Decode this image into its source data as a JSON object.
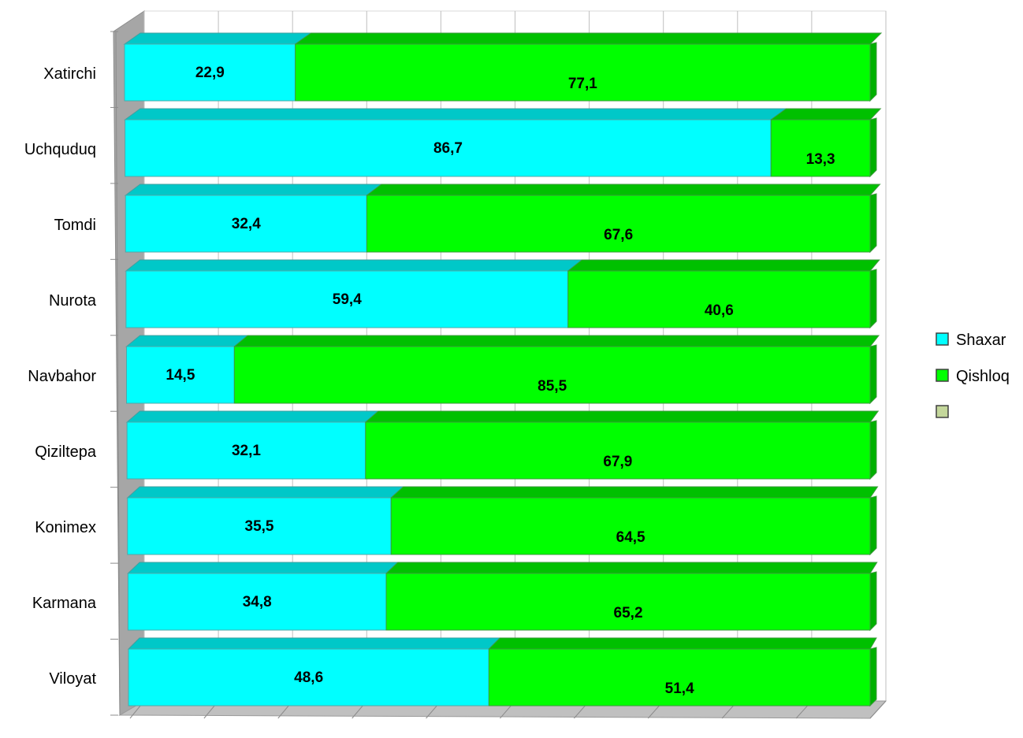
{
  "chart_data": {
    "type": "bar",
    "orientation": "horizontal",
    "stacked": "percent",
    "three_d": true,
    "categories": [
      "Xatirchi",
      "Uchquduq",
      "Tomdi",
      "Nurota",
      "Navbahor",
      "Qiziltepa",
      "Konimex",
      "Karmana",
      "Viloyat"
    ],
    "series": [
      {
        "name": "Shaxar",
        "values": [
          22.9,
          86.7,
          32.4,
          59.4,
          14.5,
          32.1,
          35.5,
          34.8,
          48.6
        ]
      },
      {
        "name": "Qishloq",
        "values": [
          77.1,
          13.3,
          67.6,
          40.6,
          85.5,
          67.9,
          64.5,
          65.2,
          51.4
        ]
      }
    ],
    "data_labels": {
      "Shaxar": [
        "22,9",
        "86,7",
        "32,4",
        "59,4",
        "14,5",
        "32,1",
        "35,5",
        "34,8",
        "48,6"
      ],
      "Qishloq": [
        "77,1",
        "13,3",
        "67,6",
        "40,6",
        "85,5",
        "67,9",
        "64,5",
        "65,2",
        "51,4"
      ]
    },
    "legend": {
      "position": "right",
      "entries": [
        {
          "label": "Shaxar",
          "color": "#00ffff"
        },
        {
          "label": "Qishloq",
          "color": "#00ff00"
        },
        {
          "label": "",
          "color": "#c4d79b"
        }
      ]
    },
    "xlim": [
      0,
      100
    ],
    "grid": true,
    "colors": {
      "Shaxar": "#00ffff",
      "Shaxar_top": "#00c8c8",
      "Qishloq": "#00ff00",
      "Qishloq_top": "#00c000",
      "Qishloq_side": "#00b000",
      "wall": "#ffffff",
      "floor": "#c0c0c0",
      "side_wall": "#a6a6a6",
      "gridline": "#bfbfbf"
    }
  }
}
